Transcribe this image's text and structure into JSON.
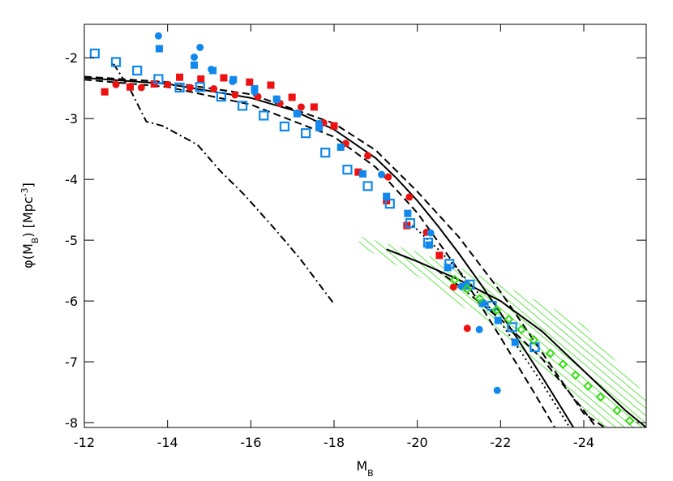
{
  "chart_data": {
    "type": "scatter",
    "xlabel": [
      {
        "text": "M"
      },
      {
        "text": "B",
        "script": "sub"
      }
    ],
    "ylabel": [
      {
        "text": "φ(M"
      },
      {
        "text": "B",
        "script": "sub"
      },
      {
        "text": ")  [Mpc"
      },
      {
        "text": "-3",
        "script": "sup"
      },
      {
        "text": "]"
      }
    ],
    "xlim": [
      -12,
      -25.5
    ],
    "ylim": [
      -8.08,
      -1.45
    ],
    "xticks": [
      -12,
      -14,
      -16,
      -18,
      -20,
      -22,
      -24
    ],
    "yticks": [
      -2,
      -3,
      -4,
      -5,
      -6,
      -7,
      -8
    ],
    "series": [
      {
        "type": "band",
        "color": "#33dd11",
        "x": [
          -18.6,
          -20,
          -21,
          -22,
          -23,
          -24,
          -25.5
        ],
        "upper": [
          -4.93,
          -5.19,
          -5.45,
          -5.72,
          -6.03,
          -6.39,
          -7.56
        ],
        "lower": [
          -5.1,
          -5.59,
          -6.05,
          -6.52,
          -7.1,
          -7.79,
          -9.0
        ]
      },
      {
        "type": "line",
        "color": "#000000",
        "dash": "solid",
        "x": [
          -12,
          -14,
          -16,
          -17,
          -18,
          -19,
          -19.5,
          -20,
          -20.5,
          -21,
          -21.5,
          -22,
          -22.5,
          -23,
          -23.5,
          -23.75
        ],
        "values": [
          -2.33,
          -2.43,
          -2.66,
          -2.86,
          -3.18,
          -3.65,
          -3.98,
          -4.35,
          -4.77,
          -5.22,
          -5.7,
          -6.2,
          -6.72,
          -7.25,
          -7.8,
          -8.08
        ]
      },
      {
        "type": "line",
        "color": "#000000",
        "dash": "dashed",
        "x": [
          -12,
          -14,
          -16,
          -18,
          -19,
          -20,
          -21,
          -22,
          -23,
          -24,
          -24.5
        ],
        "values": [
          -2.31,
          -2.4,
          -2.6,
          -3.08,
          -3.52,
          -4.2,
          -4.95,
          -5.85,
          -6.85,
          -7.85,
          -8.08
        ]
      },
      {
        "type": "line",
        "color": "#000000",
        "dash": "dashed",
        "x": [
          -12,
          -14,
          -16,
          -18,
          -19,
          -20,
          -21,
          -22,
          -22.8,
          -23.3
        ],
        "values": [
          -2.36,
          -2.48,
          -2.77,
          -3.3,
          -3.8,
          -4.55,
          -5.5,
          -6.6,
          -7.5,
          -8.08
        ]
      },
      {
        "type": "line",
        "color": "#000000",
        "dash": "dotted",
        "x": [
          -19.8,
          -20.5,
          -21,
          -21.5,
          -22,
          -22.5,
          -23,
          -23.66
        ],
        "values": [
          -4.7,
          -5.15,
          -5.5,
          -5.9,
          -6.35,
          -6.85,
          -7.35,
          -8.08
        ]
      },
      {
        "type": "line",
        "color": "#000000",
        "dash": "solid",
        "x": [
          -19.26,
          -20,
          -21,
          -22,
          -23,
          -24,
          -25,
          -25.5
        ],
        "values": [
          -5.15,
          -5.35,
          -5.65,
          -6.0,
          -6.5,
          -7.15,
          -7.8,
          -8.08
        ]
      },
      {
        "type": "line",
        "color": "#000000",
        "dash": "dashed",
        "x": [
          -20.45,
          -21,
          -22,
          -23,
          -24,
          -24.3
        ],
        "values": [
          -5.48,
          -5.75,
          -6.3,
          -6.95,
          -7.8,
          -8.08
        ]
      },
      {
        "type": "line",
        "color": "#000000",
        "dash": "dashdot",
        "x": [
          -12.7,
          -13.1,
          -13.49,
          -13.88,
          -14.72,
          -15.25,
          -15.84,
          -16.62,
          -17.2,
          -17.99
        ],
        "values": [
          -2.1,
          -2.52,
          -3.05,
          -3.12,
          -3.43,
          -3.85,
          -4.25,
          -4.85,
          -5.32,
          -6.04
        ]
      },
      {
        "type": "points",
        "marker": "circle",
        "color": "#ee1111",
        "x": [
          -12.76,
          -13.37,
          -14.0,
          -14.54,
          -15.11,
          -15.62,
          -16.17,
          -16.7,
          -17.21,
          -17.75,
          -18.28,
          -18.81,
          -19.3,
          -19.81,
          -20.22,
          -20.87,
          -21.2
        ],
        "values": [
          -2.44,
          -2.49,
          -2.44,
          -2.49,
          -2.51,
          -2.61,
          -2.64,
          -2.75,
          -2.81,
          -3.07,
          -3.41,
          -3.61,
          -3.96,
          -4.29,
          -4.87,
          -5.77,
          -6.45
        ]
      },
      {
        "type": "points",
        "marker": "square",
        "color": "#ee1111",
        "x": [
          -12.49,
          -13.1,
          -13.68,
          -14.29,
          -14.8,
          -15.35,
          -15.97,
          -16.48,
          -16.99,
          -17.52,
          -18.0,
          -18.58,
          -19.26,
          -19.75,
          -20.53
        ],
        "values": [
          -2.56,
          -2.48,
          -2.43,
          -2.32,
          -2.35,
          -2.33,
          -2.4,
          -2.45,
          -2.65,
          -2.81,
          -3.12,
          -3.88,
          -4.35,
          -4.76,
          -5.25
        ]
      },
      {
        "type": "points",
        "marker": "circle",
        "color": "#1188ee",
        "x": [
          -13.78,
          -14.78,
          -14.64,
          -15.05,
          -15.56,
          -16.09,
          -16.62,
          -17.13,
          -17.64,
          -19.14,
          -20.32,
          -21.06,
          -21.49,
          -21.92
        ],
        "values": [
          -1.64,
          -1.83,
          -1.99,
          -2.19,
          -2.39,
          -2.56,
          -2.69,
          -2.92,
          -3.08,
          -3.92,
          -4.88,
          -5.76,
          -6.47,
          -7.47
        ]
      },
      {
        "type": "points",
        "marker": "square",
        "color": "#1188ee",
        "x": [
          -13.8,
          -14.64,
          -15.09,
          -15.58,
          -16.09,
          -16.62,
          -17.11,
          -17.64,
          -18.16,
          -18.69,
          -19.26,
          -19.77,
          -20.28,
          -20.73,
          -21.18,
          -21.57,
          -21.94,
          -22.35
        ],
        "values": [
          -1.85,
          -2.12,
          -2.21,
          -2.36,
          -2.51,
          -2.68,
          -2.92,
          -3.15,
          -3.47,
          -3.91,
          -4.28,
          -4.56,
          -5.08,
          -5.45,
          -5.75,
          -6.04,
          -6.32,
          -6.68
        ]
      },
      {
        "type": "points",
        "marker": "open-square",
        "color": "#1188ee",
        "x": [
          -12.25,
          -12.76,
          -13.27,
          -13.78,
          -14.29,
          -14.78,
          -15.29,
          -15.8,
          -16.31,
          -16.81,
          -17.32,
          -17.79,
          -18.32,
          -18.81,
          -19.34,
          -19.83,
          -20.26,
          -20.77,
          -21.26,
          -21.79,
          -22.28,
          -22.82
        ],
        "values": [
          -1.93,
          -2.07,
          -2.21,
          -2.35,
          -2.49,
          -2.48,
          -2.64,
          -2.79,
          -2.95,
          -3.13,
          -3.24,
          -3.56,
          -3.84,
          -4.11,
          -4.4,
          -4.72,
          -5.04,
          -5.39,
          -5.73,
          -6.08,
          -6.43,
          -6.76
        ]
      },
      {
        "type": "points",
        "marker": "diamond",
        "color": "#33dd11",
        "x": [
          -20.9,
          -21.2,
          -21.5,
          -21.9,
          -22.2,
          -22.5,
          -22.8,
          -23.2,
          -23.5,
          -23.8,
          -24.1,
          -24.4,
          -24.8,
          -25.1
        ],
        "values": [
          -5.65,
          -5.8,
          -5.96,
          -6.15,
          -6.3,
          -6.47,
          -6.64,
          -6.86,
          -7.04,
          -7.22,
          -7.4,
          -7.58,
          -7.8,
          -7.97
        ]
      }
    ]
  }
}
